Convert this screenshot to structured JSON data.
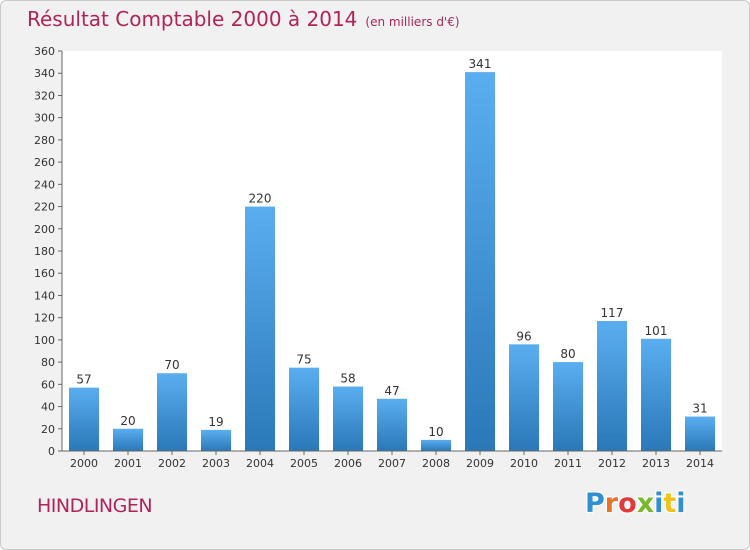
{
  "header": {
    "title": "Résultat Comptable 2000 à 2014",
    "subtitle": "(en milliers d'€)"
  },
  "footer": {
    "commune": "HINDLINGEN",
    "logo": {
      "text": "Proxiti",
      "letter_colors": [
        "#2f8fd0",
        "#e8732a",
        "#e23a3a",
        "#76b82a",
        "#2f8fd0",
        "#f2c11a",
        "#2f8fd0"
      ]
    }
  },
  "chart_data": {
    "type": "bar",
    "categories": [
      "2000",
      "2001",
      "2002",
      "2003",
      "2004",
      "2005",
      "2006",
      "2007",
      "2008",
      "2009",
      "2010",
      "2011",
      "2012",
      "2013",
      "2014"
    ],
    "values": [
      57,
      20,
      70,
      19,
      220,
      75,
      58,
      47,
      10,
      341,
      96,
      80,
      117,
      101,
      31
    ],
    "title": "Résultat Comptable 2000 à 2014",
    "xlabel": "",
    "ylabel": "",
    "ylim": [
      0,
      360
    ],
    "ytick_step": 20,
    "grid": false,
    "bar_color_top": "#5aaef0",
    "bar_color_bottom": "#2a78b8",
    "data_labels": true
  }
}
